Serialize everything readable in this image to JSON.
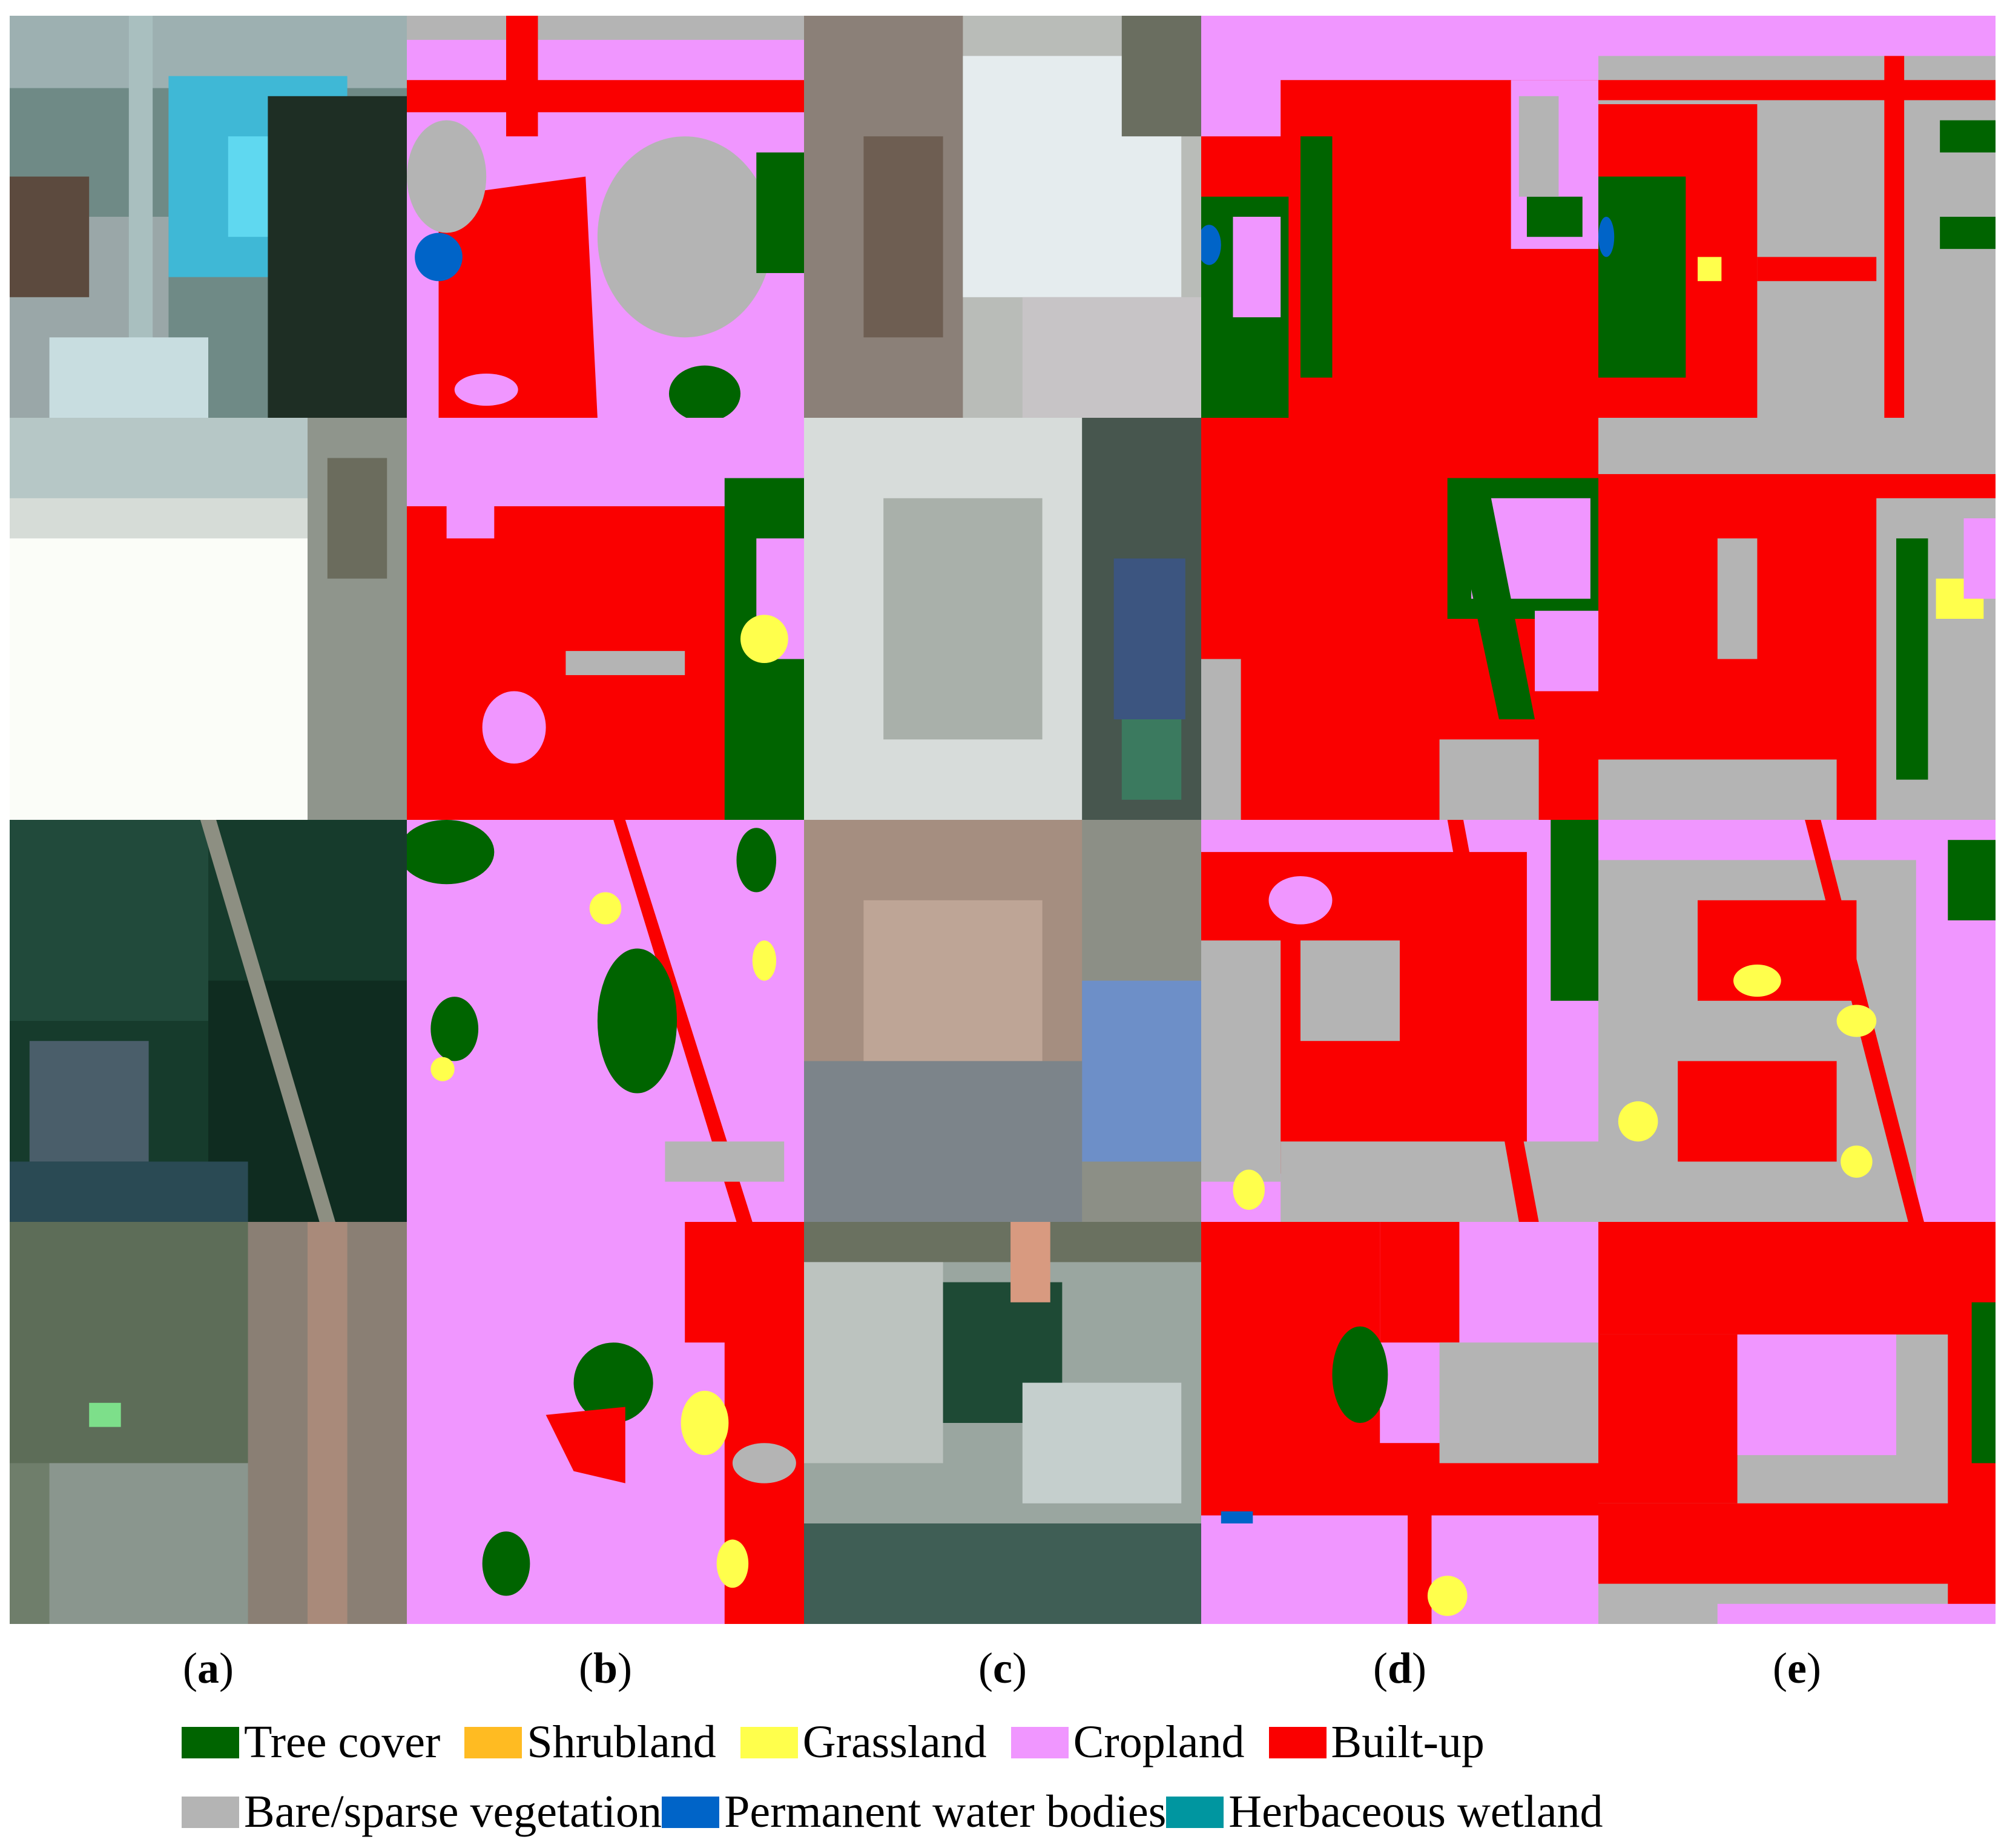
{
  "figure": {
    "column_labels": [
      "a",
      "b",
      "c",
      "d",
      "e"
    ],
    "rows": 4,
    "columns": 5
  },
  "legend": {
    "items": [
      {
        "label": "Tree cover",
        "color": "#006400"
      },
      {
        "label": "Shrubland",
        "color": "#FFBB22"
      },
      {
        "label": "Grassland",
        "color": "#FFFF4C"
      },
      {
        "label": "Cropland",
        "color": "#F096FF"
      },
      {
        "label": "Built-up",
        "color": "#FA0000"
      },
      {
        "label": "Bare/sparse vegetation",
        "color": "#B4B4B4"
      },
      {
        "label": "Permanent water bodies",
        "color": "#0064C8"
      },
      {
        "label": "Herbaceous wetland",
        "color": "#0096A0"
      }
    ]
  },
  "colors": {
    "tree": "#006400",
    "grass": "#FFFF4C",
    "crop": "#F096FF",
    "built": "#FA0000",
    "bare": "#B4B4B4",
    "water": "#0064C8"
  }
}
